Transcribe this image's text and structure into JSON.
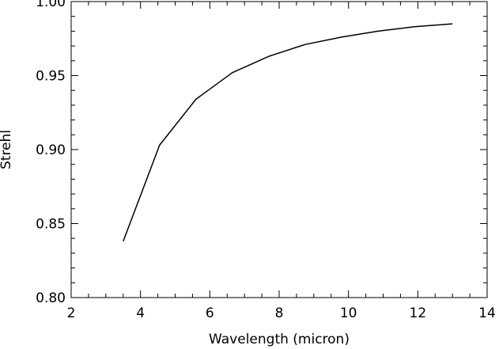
{
  "chart_data": {
    "type": "line",
    "title": "",
    "xlabel": "Wavelength (micron)",
    "ylabel": "Strehl",
    "xlim": [
      2,
      14
    ],
    "ylim": [
      0.8,
      1.0
    ],
    "x_ticks": [
      2,
      4,
      6,
      8,
      10,
      12,
      14
    ],
    "x_tick_labels": [
      "2",
      "4",
      "6",
      "8",
      "10",
      "12",
      "14"
    ],
    "y_ticks": [
      0.8,
      0.85,
      0.9,
      0.95,
      1.0
    ],
    "y_tick_labels": [
      "0.80",
      "0.85",
      "0.90",
      "0.95",
      "1.00"
    ],
    "grid": false,
    "legend": "none",
    "series": [
      {
        "color": "#000000",
        "x": [
          3.5,
          4.55,
          5.6,
          6.65,
          7.7,
          8.75,
          9.8,
          10.85,
          11.9,
          13.0
        ],
        "y": [
          0.838,
          0.903,
          0.934,
          0.952,
          0.963,
          0.971,
          0.976,
          0.98,
          0.983,
          0.985
        ]
      }
    ]
  }
}
